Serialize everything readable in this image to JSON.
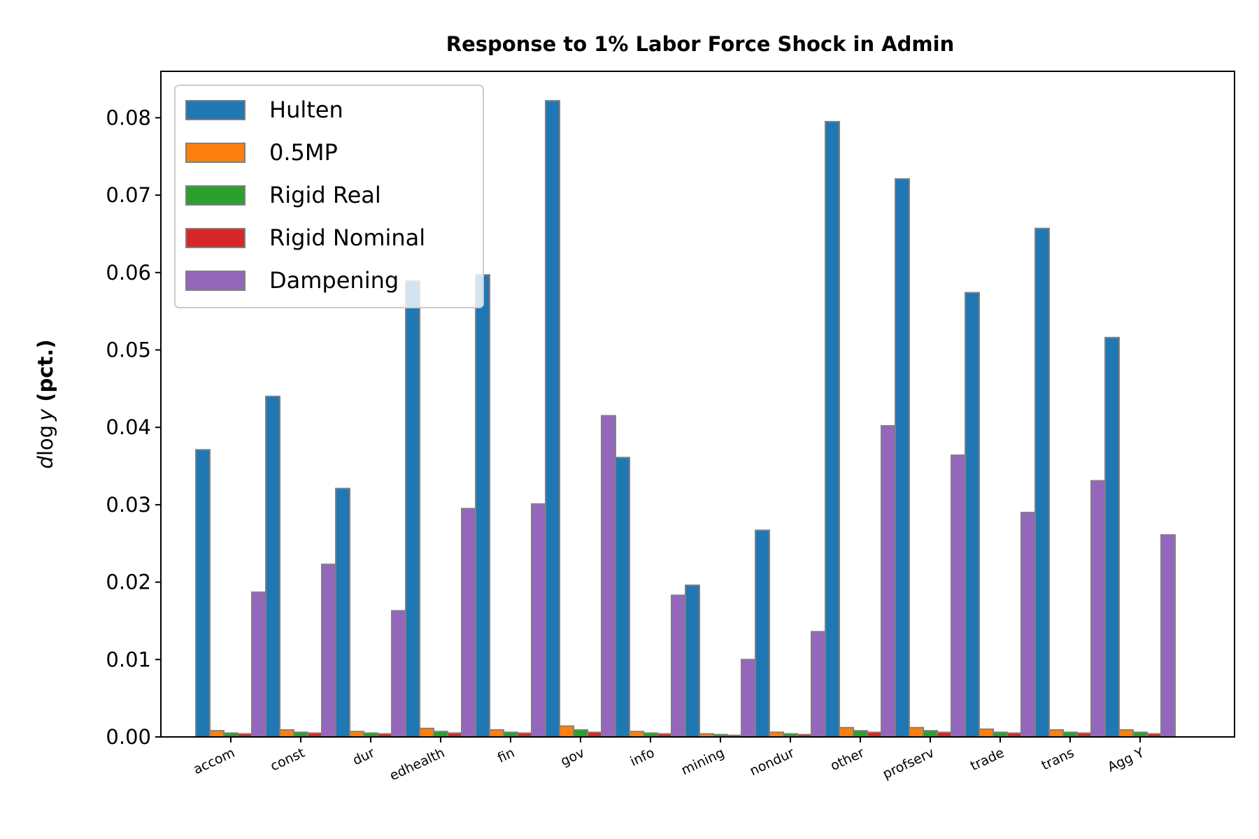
{
  "chart_data": {
    "type": "bar",
    "title": "Response to 1% Labor Force Shock in Admin",
    "xlabel": "",
    "ylabel": {
      "italic": "d",
      "middle": "log",
      "italic2": "y",
      "bold": "(pct.)"
    },
    "ylim": [
      0,
      0.086
    ],
    "yticks": [
      "0.00",
      "0.01",
      "0.02",
      "0.03",
      "0.04",
      "0.05",
      "0.06",
      "0.07",
      "0.08"
    ],
    "ytick_values": [
      0,
      0.01,
      0.02,
      0.03,
      0.04,
      0.05,
      0.06,
      0.07,
      0.08
    ],
    "categories": [
      "accom",
      "const",
      "dur",
      "edhealth",
      "fin",
      "gov",
      "info",
      "mining",
      "nondur",
      "other",
      "profserv",
      "trade",
      "trans",
      "Agg Y"
    ],
    "legend_position": "top-left",
    "grid": false,
    "bar_edge_color": "#808080",
    "series": [
      {
        "name": "Hulten",
        "color": "#1f77b4",
        "values": [
          0.0371,
          0.044,
          0.0321,
          0.0589,
          0.0597,
          0.0822,
          0.0361,
          0.0196,
          0.0267,
          0.0795,
          0.0721,
          0.0574,
          0.0657,
          0.0516
        ]
      },
      {
        "name": "0.5MP",
        "color": "#ff7f0e",
        "values": [
          0.0008,
          0.0009,
          0.0007,
          0.0011,
          0.0009,
          0.0014,
          0.0007,
          0.0004,
          0.0006,
          0.0012,
          0.0012,
          0.001,
          0.0009,
          0.0009
        ]
      },
      {
        "name": "Rigid Real",
        "color": "#2ca02c",
        "values": [
          0.0005,
          0.0006,
          0.0005,
          0.0007,
          0.0006,
          0.0009,
          0.0005,
          0.0003,
          0.0004,
          0.0008,
          0.0008,
          0.0006,
          0.0006,
          0.0006
        ]
      },
      {
        "name": "Rigid Nominal",
        "color": "#d62728",
        "values": [
          0.0004,
          0.0005,
          0.0004,
          0.0005,
          0.0005,
          0.0006,
          0.0004,
          0.0002,
          0.0003,
          0.0006,
          0.0006,
          0.0005,
          0.0005,
          0.0004
        ]
      },
      {
        "name": "Dampening",
        "color": "#9467bd",
        "values": [
          0.0187,
          0.0223,
          0.0163,
          0.0295,
          0.0301,
          0.0415,
          0.0183,
          0.01,
          0.0136,
          0.0402,
          0.0364,
          0.029,
          0.0331,
          0.0261
        ]
      }
    ]
  }
}
